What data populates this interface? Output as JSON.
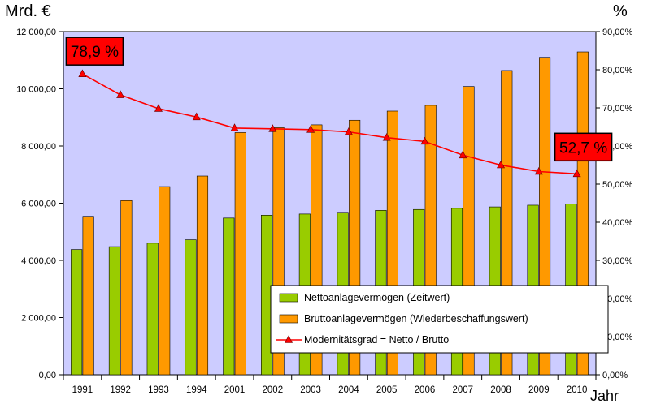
{
  "chart_data": {
    "type": "bar",
    "left_unit": "Mrd. €",
    "right_unit": "%",
    "xlabel": "Jahr",
    "categories": [
      "1991",
      "1992",
      "1993",
      "1994",
      "2001",
      "2002",
      "2003",
      "2004",
      "2005",
      "2006",
      "2007",
      "2008",
      "2009",
      "2010"
    ],
    "left_ticks": [
      "0,00",
      "2 000,00",
      "4 000,00",
      "6 000,00",
      "8 000,00",
      "10 000,00",
      "12 000,00"
    ],
    "right_ticks": [
      "0,00%",
      "10,00%",
      "20,00%",
      "30,00%",
      "40,00%",
      "50,00%",
      "60,00%",
      "70,00%",
      "80,00%",
      "90,00%"
    ],
    "ylim_left": [
      0,
      12000
    ],
    "ylim_right": [
      0,
      90
    ],
    "series": [
      {
        "name": "Nettoanlagevermögen (Zeitwert)",
        "type": "bar",
        "axis": "left",
        "color": "#99cc00",
        "values": [
          4380,
          4480,
          4600,
          4720,
          5480,
          5580,
          5620,
          5680,
          5750,
          5780,
          5820,
          5870,
          5930,
          5970
        ]
      },
      {
        "name": "Bruttoanlagevermögen (Wiederbeschaffungswert)",
        "type": "bar",
        "axis": "left",
        "color": "#ff9900",
        "values": [
          5540,
          6090,
          6580,
          6950,
          8470,
          8640,
          8740,
          8900,
          9220,
          9420,
          10080,
          10640,
          11100,
          11290
        ]
      },
      {
        "name": "Modernitätsgrad = Netto / Brutto",
        "type": "line",
        "axis": "right",
        "color": "#ff0000",
        "values": [
          78.9,
          73.4,
          69.8,
          67.6,
          64.7,
          64.5,
          64.3,
          63.7,
          62.2,
          61.2,
          57.6,
          55.0,
          53.3,
          52.7
        ]
      }
    ],
    "annotations": [
      {
        "text": "78,9 %",
        "category": "1991"
      },
      {
        "text": "52,7 %",
        "category": "2010"
      }
    ],
    "grid": false,
    "legend_position": "bottom-right",
    "plot_background": "#ccccff"
  }
}
